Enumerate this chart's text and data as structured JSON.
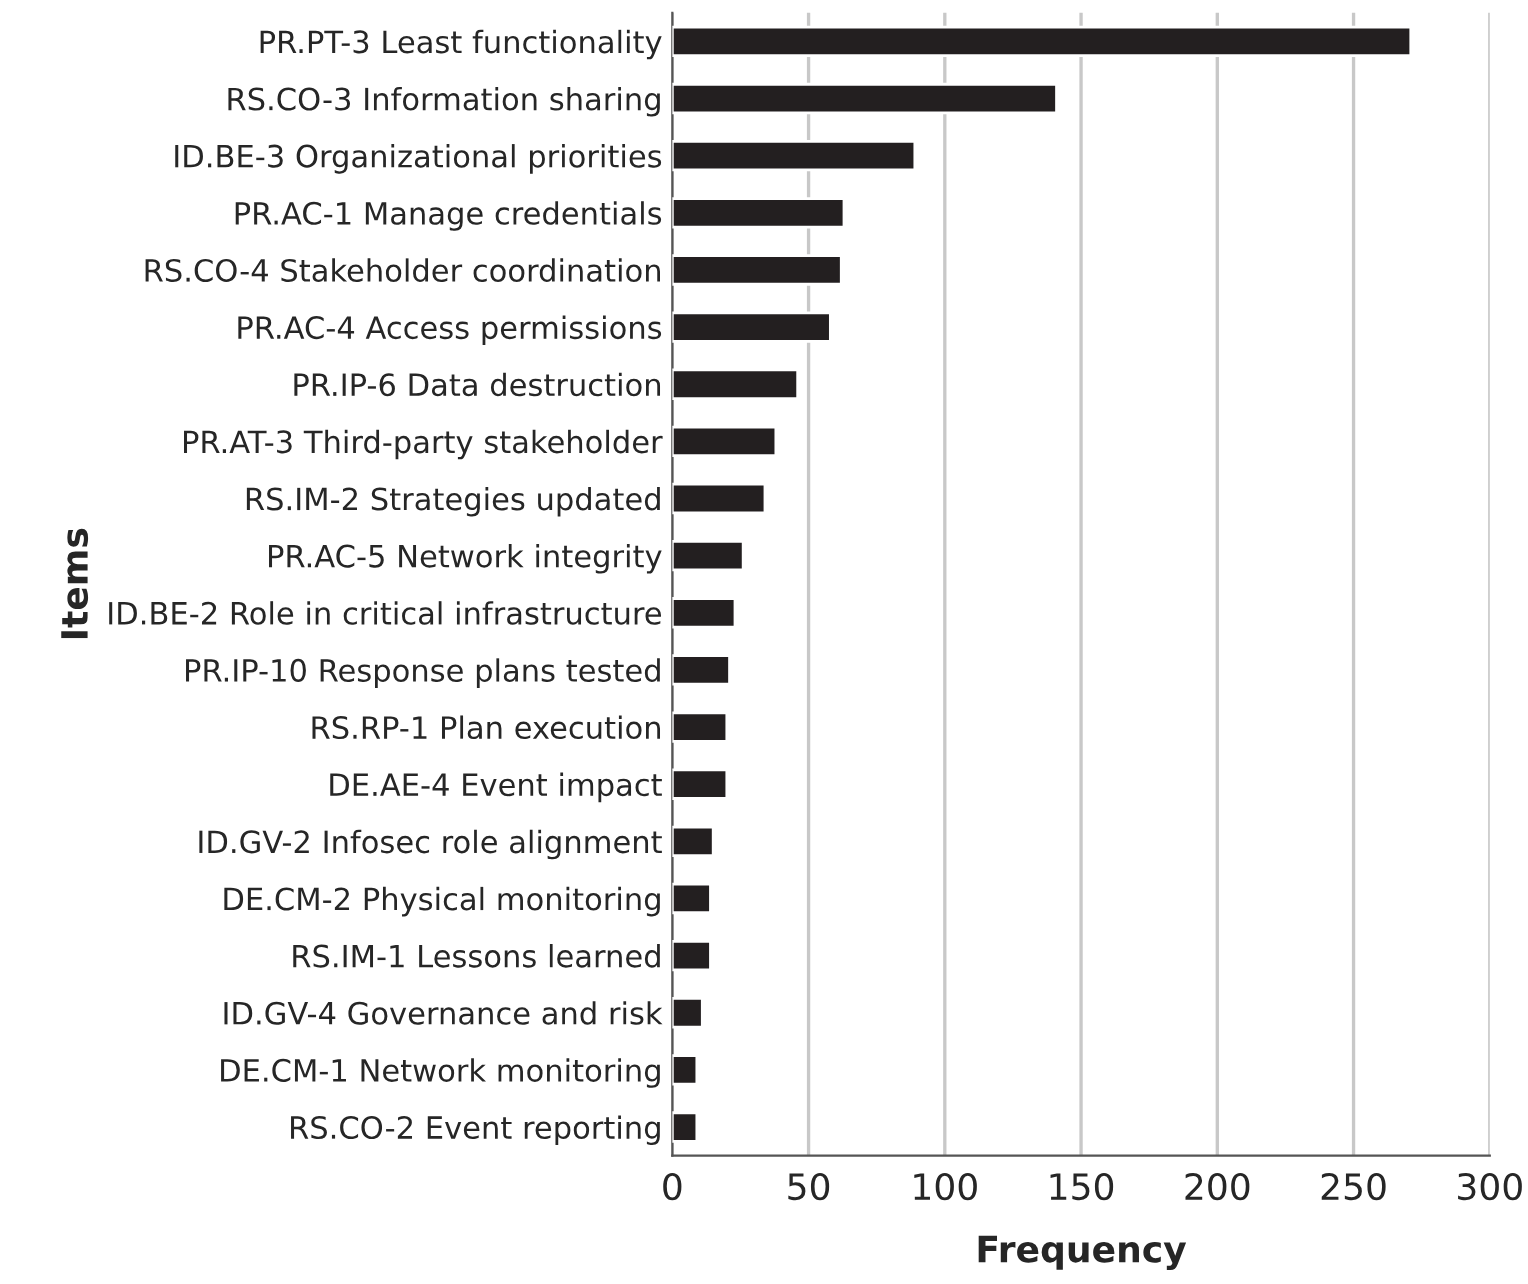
{
  "chart_data": {
    "type": "bar",
    "orientation": "horizontal",
    "xlabel": "Frequency",
    "ylabel": "Items",
    "categories": [
      "PR.PT-3 Least functionality",
      "RS.CO-3 Information sharing",
      "ID.BE-3 Organizational priorities",
      "PR.AC-1 Manage credentials",
      "RS.CO-4 Stakeholder coordination",
      "PR.AC-4 Access permissions",
      "PR.IP-6 Data destruction",
      "PR.AT-3 Third-party stakeholder",
      "RS.IM-2 Strategies updated",
      "PR.AC-5 Network integrity",
      "ID.BE-2 Role in critical infrastructure",
      "PR.IP-10 Response plans tested",
      "RS.RP-1 Plan execution",
      "DE.AE-4 Event impact",
      "ID.GV-2 Infosec role alignment",
      "DE.CM-2 Physical monitoring",
      "RS.IM-1 Lessons learned",
      "ID.GV-4 Governance and risk",
      "DE.CM-1 Network monitoring",
      "RS.CO-2 Event reporting"
    ],
    "values": [
      271,
      141,
      89,
      63,
      62,
      58,
      46,
      38,
      34,
      26,
      23,
      21,
      20,
      20,
      15,
      14,
      14,
      11,
      9,
      9
    ],
    "color": "#231f20",
    "xlim": [
      0,
      300
    ],
    "xticks": [
      0,
      50,
      100,
      150,
      200,
      250,
      300
    ],
    "grid": "x",
    "legend": false
  }
}
